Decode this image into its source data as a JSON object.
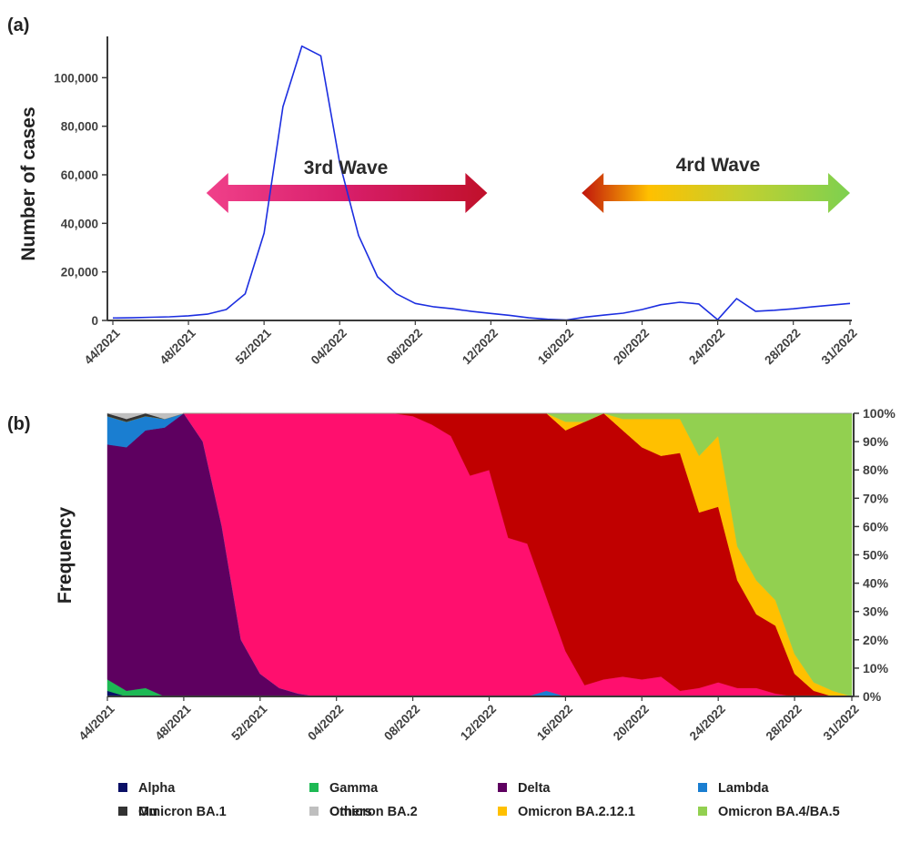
{
  "chart_data": [
    {
      "panel_label": "(a)",
      "type": "line",
      "ylabel": "Number of cases",
      "ylim": [
        0,
        117000
      ],
      "yticks": [
        0,
        20000,
        40000,
        60000,
        80000,
        100000
      ],
      "ytick_labels": [
        "0",
        "20,000",
        "40,000",
        "60,000",
        "80,000",
        "100,000"
      ],
      "xtick_labels": [
        "44/2021",
        "48/2021",
        "52/2021",
        "04/2022",
        "08/2022",
        "12/2022",
        "16/2022",
        "20/2022",
        "24/2022",
        "28/2022",
        "31/2022"
      ],
      "series_color": "#1c2ee0",
      "x": [
        "44/2021",
        "45/2021",
        "46/2021",
        "47/2021",
        "48/2021",
        "49/2021",
        "50/2021",
        "51/2021",
        "52/2021",
        "01/2022",
        "02/2022",
        "03/2022",
        "04/2022",
        "05/2022",
        "06/2022",
        "07/2022",
        "08/2022",
        "09/2022",
        "10/2022",
        "11/2022",
        "12/2022",
        "13/2022",
        "14/2022",
        "15/2022",
        "16/2022",
        "17/2022",
        "18/2022",
        "19/2022",
        "20/2022",
        "21/2022",
        "22/2022",
        "23/2022",
        "24/2022",
        "25/2022",
        "26/2022",
        "27/2022",
        "28/2022",
        "29/2022",
        "30/2022",
        "31/2022"
      ],
      "values": [
        1000,
        1100,
        1300,
        1500,
        1900,
        2600,
        4500,
        11000,
        36000,
        88000,
        113000,
        109000,
        65000,
        35000,
        18000,
        11000,
        7000,
        5600,
        4800,
        3700,
        2900,
        2100,
        1100,
        500,
        200,
        1400,
        2200,
        3000,
        4500,
        6500,
        7500,
        6800,
        300,
        9000,
        3800,
        4200,
        4800,
        5600,
        6300,
        7000
      ]
    },
    {
      "panel_label": "(b)",
      "type": "area",
      "stacked": true,
      "ylabel": "Frequency",
      "ylim": [
        0,
        100
      ],
      "ytick_labels": [
        "0%",
        "10%",
        "20%",
        "30%",
        "40%",
        "50%",
        "60%",
        "70%",
        "80%",
        "90%",
        "100%"
      ],
      "xtick_labels": [
        "44/2021",
        "48/2021",
        "52/2021",
        "04/2022",
        "08/2022",
        "12/2022",
        "16/2022",
        "20/2022",
        "24/2022",
        "28/2022",
        "31/2022"
      ],
      "x": [
        "44/2021",
        "45/2021",
        "46/2021",
        "47/2021",
        "48/2021",
        "49/2021",
        "50/2021",
        "51/2021",
        "52/2021",
        "01/2022",
        "02/2022",
        "03/2022",
        "04/2022",
        "05/2022",
        "06/2022",
        "07/2022",
        "08/2022",
        "09/2022",
        "10/2022",
        "11/2022",
        "12/2022",
        "13/2022",
        "14/2022",
        "15/2022",
        "16/2022",
        "17/2022",
        "18/2022",
        "19/2022",
        "20/2022",
        "21/2022",
        "22/2022",
        "23/2022",
        "24/2022",
        "25/2022",
        "26/2022",
        "27/2022",
        "28/2022",
        "29/2022",
        "30/2022",
        "31/2022"
      ],
      "series": [
        {
          "name": "Alpha",
          "color": "#0a1066",
          "values": [
            2,
            0,
            0,
            0,
            0,
            0,
            0,
            0,
            0,
            0,
            0,
            0,
            0,
            0,
            0,
            0,
            0,
            0,
            0,
            0,
            0,
            0,
            0,
            0,
            0,
            0,
            0,
            0,
            0,
            0,
            0,
            0,
            0,
            0,
            0,
            0,
            0,
            0,
            0,
            0
          ]
        },
        {
          "name": "Gamma",
          "color": "#1db954",
          "values": [
            4,
            2,
            3,
            0,
            0,
            0,
            0,
            0,
            0,
            0,
            0,
            0,
            0,
            0,
            0,
            0,
            0,
            0,
            0,
            0,
            0,
            0,
            0,
            0,
            0,
            0,
            0,
            0,
            0,
            0,
            0,
            0,
            0,
            0,
            0,
            0,
            0,
            0,
            0,
            0
          ]
        },
        {
          "name": "Delta",
          "color": "#5e0060",
          "values": [
            83,
            86,
            91,
            95,
            100,
            90,
            60,
            20,
            8,
            3,
            1,
            0,
            0,
            0,
            0,
            0,
            0,
            0,
            0,
            0,
            0,
            0,
            0,
            0,
            0,
            0,
            0,
            0,
            0,
            0,
            0,
            0,
            0,
            0,
            0,
            0,
            0,
            0,
            0,
            0
          ]
        },
        {
          "name": "Lambda",
          "color": "#1a7ed1",
          "values": [
            10,
            9,
            5,
            3,
            0,
            0,
            0,
            0,
            0,
            0,
            0,
            0,
            0,
            0,
            0,
            0,
            0,
            0,
            0,
            0,
            0,
            0,
            0,
            2,
            0,
            0,
            0,
            0,
            0,
            0,
            0,
            0,
            0,
            0,
            0,
            0,
            0,
            0,
            0,
            0
          ]
        },
        {
          "name": "Omicron BA.1",
          "color": "#ff0f6e",
          "values": [
            0,
            0,
            0,
            0,
            0,
            10,
            40,
            80,
            92,
            97,
            99,
            100,
            100,
            100,
            100,
            100,
            99,
            96,
            92,
            78,
            80,
            56,
            54,
            33,
            16,
            4,
            6,
            7,
            6,
            7,
            2,
            3,
            5,
            3,
            3,
            1,
            0,
            0,
            0,
            0
          ]
        },
        {
          "name": "Omicron BA.2",
          "color": "#c00000",
          "values": [
            0,
            0,
            0,
            0,
            0,
            0,
            0,
            0,
            0,
            0,
            0,
            0,
            0,
            0,
            0,
            0,
            1,
            4,
            8,
            22,
            20,
            44,
            46,
            65,
            78,
            93,
            94,
            87,
            82,
            78,
            84,
            62,
            62,
            38,
            26,
            24,
            8,
            2,
            0,
            0
          ]
        },
        {
          "name": "Omicron BA.2.12.1",
          "color": "#ffc000",
          "values": [
            0,
            0,
            0,
            0,
            0,
            0,
            0,
            0,
            0,
            0,
            0,
            0,
            0,
            0,
            0,
            0,
            0,
            0,
            0,
            0,
            0,
            0,
            0,
            0,
            3,
            0,
            0,
            4,
            10,
            13,
            12,
            20,
            25,
            12,
            12,
            9,
            7,
            3,
            2,
            0
          ]
        },
        {
          "name": "Omicron BA.4/BA.5",
          "color": "#92d050",
          "values": [
            0,
            0,
            0,
            0,
            0,
            0,
            0,
            0,
            0,
            0,
            0,
            0,
            0,
            0,
            0,
            0,
            0,
            0,
            0,
            0,
            0,
            0,
            0,
            0,
            3,
            3,
            0,
            2,
            2,
            2,
            2,
            15,
            8,
            47,
            59,
            66,
            85,
            95,
            98,
            100
          ]
        },
        {
          "name": "Mu",
          "color": "#333333",
          "values": [
            1,
            1,
            1,
            0,
            0,
            0,
            0,
            0,
            0,
            0,
            0,
            0,
            0,
            0,
            0,
            0,
            0,
            0,
            0,
            0,
            0,
            0,
            0,
            0,
            0,
            0,
            0,
            0,
            0,
            0,
            0,
            0,
            0,
            0,
            0,
            0,
            0,
            0,
            0,
            0
          ]
        },
        {
          "name": "Others",
          "color": "#bfbfbf",
          "values": [
            0,
            2,
            0,
            2,
            0,
            0,
            0,
            0,
            0,
            0,
            0,
            0,
            0,
            0,
            0,
            0,
            0,
            0,
            0,
            0,
            0,
            0,
            0,
            0,
            0,
            0,
            0,
            0,
            0,
            0,
            0,
            0,
            0,
            0,
            0,
            0,
            0,
            0,
            0,
            0
          ]
        }
      ]
    }
  ],
  "annotations": {
    "wave3": {
      "label": "3rd Wave",
      "start": "49/2021",
      "end": "12/2022"
    },
    "wave4": {
      "label": "4rd Wave",
      "start": "17/2022",
      "end": "31/2022"
    }
  }
}
